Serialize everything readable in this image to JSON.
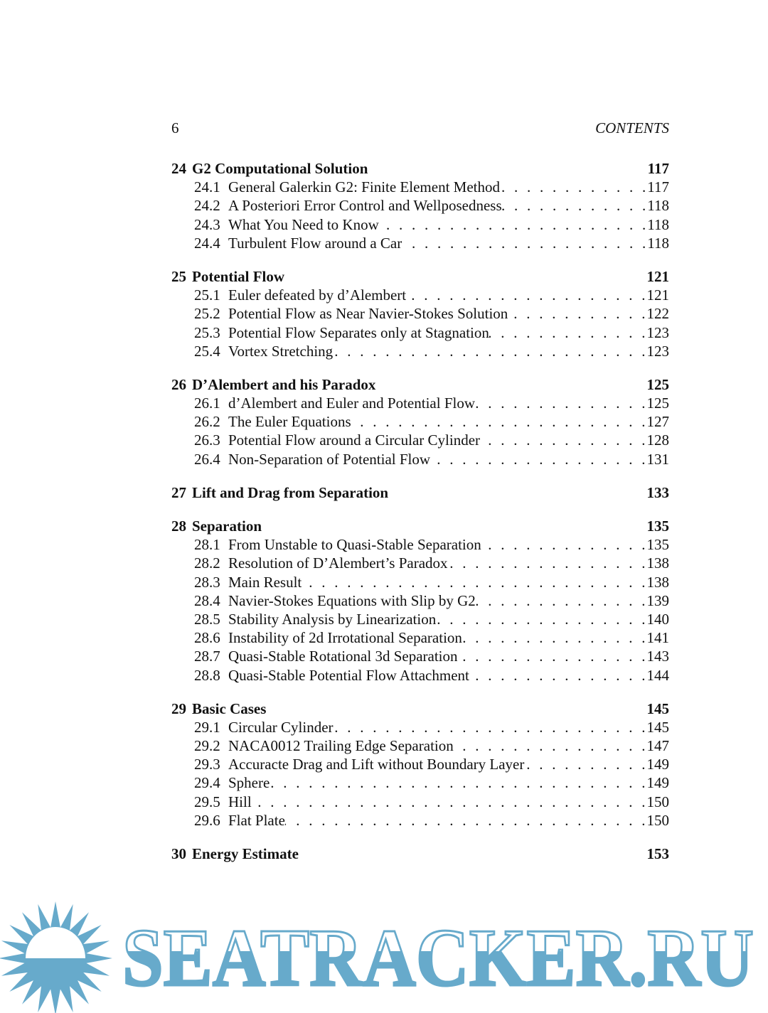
{
  "header": {
    "page_number": "6",
    "running_title": "CONTENTS"
  },
  "chapters": [
    {
      "num": "24",
      "title": "G2 Computational Solution",
      "page": "117",
      "sections": [
        {
          "num": "24.1",
          "title": "General Galerkin G2: Finite Element Method",
          "page": "117"
        },
        {
          "num": "24.2",
          "title": "A Posteriori Error Control and Wellposedness",
          "page": "118"
        },
        {
          "num": "24.3",
          "title": "What You Need to Know",
          "page": "118"
        },
        {
          "num": "24.4",
          "title": "Turbulent Flow around a Car",
          "page": "118"
        }
      ]
    },
    {
      "num": "25",
      "title": "Potential Flow",
      "page": "121",
      "sections": [
        {
          "num": "25.1",
          "title": "Euler defeated by d’Alembert",
          "page": "121"
        },
        {
          "num": "25.2",
          "title": "Potential Flow as Near Navier-Stokes Solution",
          "page": "122"
        },
        {
          "num": "25.3",
          "title": "Potential Flow Separates only at Stagnation",
          "page": "123"
        },
        {
          "num": "25.4",
          "title": "Vortex Stretching",
          "page": "123"
        }
      ]
    },
    {
      "num": "26",
      "title": "D’Alembert and his Paradox",
      "page": "125",
      "sections": [
        {
          "num": "26.1",
          "title": "d’Alembert and Euler and Potential Flow",
          "page": "125"
        },
        {
          "num": "26.2",
          "title": "The Euler Equations",
          "page": "127"
        },
        {
          "num": "26.3",
          "title": "Potential Flow around a Circular Cylinder",
          "page": "128"
        },
        {
          "num": "26.4",
          "title": "Non-Separation of Potential Flow",
          "page": "131"
        }
      ]
    },
    {
      "num": "27",
      "title": "Lift and Drag from Separation",
      "page": "133",
      "sections": []
    },
    {
      "num": "28",
      "title": "Separation",
      "page": "135",
      "sections": [
        {
          "num": "28.1",
          "title": "From Unstable to Quasi-Stable Separation",
          "page": "135"
        },
        {
          "num": "28.2",
          "title": "Resolution of D’Alembert’s Paradox",
          "page": "138"
        },
        {
          "num": "28.3",
          "title": "Main Result",
          "page": "138"
        },
        {
          "num": "28.4",
          "title": "Navier-Stokes Equations with Slip by G2",
          "page": "139"
        },
        {
          "num": "28.5",
          "title": "Stability Analysis by Linearization",
          "page": "140"
        },
        {
          "num": "28.6",
          "title": "Instability of 2d Irrotational Separation",
          "page": "141"
        },
        {
          "num": "28.7",
          "title": "Quasi-Stable Rotational 3d Separation",
          "page": "143"
        },
        {
          "num": "28.8",
          "title": "Quasi-Stable Potential Flow Attachment",
          "page": "144"
        }
      ]
    },
    {
      "num": "29",
      "title": "Basic Cases",
      "page": "145",
      "sections": [
        {
          "num": "29.1",
          "title": "Circular Cylinder",
          "page": "145"
        },
        {
          "num": "29.2",
          "title": "NACA0012 Trailing Edge Separation",
          "page": "147"
        },
        {
          "num": "29.3",
          "title": "Accuracte Drag and Lift without Boundary Layer",
          "page": "149"
        },
        {
          "num": "29.4",
          "title": "Sphere",
          "page": "149"
        },
        {
          "num": "29.5",
          "title": "Hill",
          "page": "150"
        },
        {
          "num": "29.6",
          "title": "Flat Plate",
          "page": "150"
        }
      ]
    },
    {
      "num": "30",
      "title": "Energy Estimate",
      "page": "153",
      "sections": []
    }
  ],
  "watermark": {
    "text": "SEATRACKER.RU",
    "color": "#67aacb"
  }
}
